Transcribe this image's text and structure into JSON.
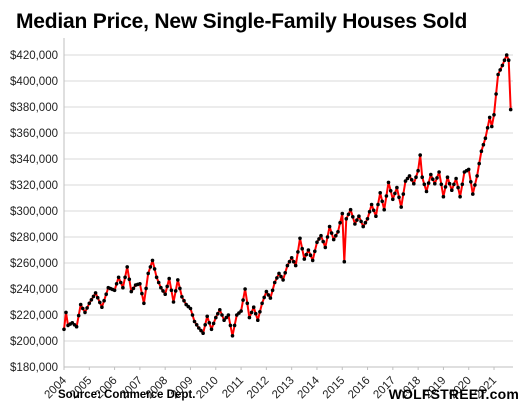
{
  "chart_data": {
    "type": "line",
    "title": "Median Price, New Single-Family Houses Sold",
    "xlabel": "",
    "ylabel": "",
    "x_ticks": [
      "2004",
      "2005",
      "2006",
      "2007",
      "2008",
      "2009",
      "2010",
      "2011",
      "2012",
      "2013",
      "2014",
      "2015",
      "2016",
      "2017",
      "2018",
      "2019",
      "2020",
      "2021"
    ],
    "y_ticks": [
      "$180,000",
      "$200,000",
      "$220,000",
      "$240,000",
      "$260,000",
      "$280,000",
      "$300,000",
      "$320,000",
      "$340,000",
      "$360,000",
      "$380,000",
      "$400,000",
      "$420,000"
    ],
    "ylim": [
      180000,
      430000
    ],
    "xlim": [
      2004.0,
      2021.75
    ],
    "grid": true,
    "line_color": "#ff0000",
    "marker_color": "#000000",
    "anchors": [
      [
        2004.0,
        209000
      ],
      [
        2004.08,
        222000
      ],
      [
        2004.16,
        212000
      ],
      [
        2004.33,
        214000
      ],
      [
        2004.5,
        211000
      ],
      [
        2004.66,
        228000
      ],
      [
        2004.83,
        222000
      ],
      [
        2005.0,
        229000
      ],
      [
        2005.25,
        237000
      ],
      [
        2005.5,
        226000
      ],
      [
        2005.75,
        241000
      ],
      [
        2006.0,
        239000
      ],
      [
        2006.16,
        249000
      ],
      [
        2006.33,
        241000
      ],
      [
        2006.5,
        257000
      ],
      [
        2006.66,
        238000
      ],
      [
        2006.83,
        243000
      ],
      [
        2007.0,
        244000
      ],
      [
        2007.16,
        229000
      ],
      [
        2007.33,
        252000
      ],
      [
        2007.5,
        262000
      ],
      [
        2007.66,
        249000
      ],
      [
        2007.83,
        241000
      ],
      [
        2008.0,
        236000
      ],
      [
        2008.16,
        248000
      ],
      [
        2008.33,
        230000
      ],
      [
        2008.5,
        247000
      ],
      [
        2008.66,
        234000
      ],
      [
        2008.83,
        228000
      ],
      [
        2009.0,
        225000
      ],
      [
        2009.16,
        215000
      ],
      [
        2009.33,
        210000
      ],
      [
        2009.5,
        206000
      ],
      [
        2009.66,
        219000
      ],
      [
        2009.83,
        209000
      ],
      [
        2010.0,
        218000
      ],
      [
        2010.16,
        224000
      ],
      [
        2010.33,
        216000
      ],
      [
        2010.5,
        220000
      ],
      [
        2010.66,
        204000
      ],
      [
        2010.83,
        220000
      ],
      [
        2011.0,
        223000
      ],
      [
        2011.16,
        240000
      ],
      [
        2011.33,
        218000
      ],
      [
        2011.5,
        226000
      ],
      [
        2011.66,
        216000
      ],
      [
        2011.83,
        229000
      ],
      [
        2012.0,
        238000
      ],
      [
        2012.16,
        233000
      ],
      [
        2012.33,
        245000
      ],
      [
        2012.5,
        252000
      ],
      [
        2012.66,
        247000
      ],
      [
        2012.83,
        258000
      ],
      [
        2013.0,
        264000
      ],
      [
        2013.16,
        258000
      ],
      [
        2013.33,
        279000
      ],
      [
        2013.5,
        263000
      ],
      [
        2013.66,
        270000
      ],
      [
        2013.83,
        262000
      ],
      [
        2014.0,
        276000
      ],
      [
        2014.16,
        281000
      ],
      [
        2014.33,
        272000
      ],
      [
        2014.5,
        288000
      ],
      [
        2014.66,
        278000
      ],
      [
        2014.83,
        284000
      ],
      [
        2015.0,
        298000
      ],
      [
        2015.08,
        261000
      ],
      [
        2015.16,
        294000
      ],
      [
        2015.33,
        301000
      ],
      [
        2015.5,
        290000
      ],
      [
        2015.66,
        296000
      ],
      [
        2015.83,
        288000
      ],
      [
        2016.0,
        294000
      ],
      [
        2016.16,
        305000
      ],
      [
        2016.33,
        296000
      ],
      [
        2016.5,
        314000
      ],
      [
        2016.66,
        301000
      ],
      [
        2016.83,
        322000
      ],
      [
        2017.0,
        309000
      ],
      [
        2017.16,
        318000
      ],
      [
        2017.33,
        303000
      ],
      [
        2017.5,
        323000
      ],
      [
        2017.66,
        327000
      ],
      [
        2017.83,
        321000
      ],
      [
        2018.0,
        331000
      ],
      [
        2018.08,
        343000
      ],
      [
        2018.16,
        326000
      ],
      [
        2018.33,
        315000
      ],
      [
        2018.5,
        328000
      ],
      [
        2018.66,
        321000
      ],
      [
        2018.83,
        330000
      ],
      [
        2019.0,
        311000
      ],
      [
        2019.16,
        326000
      ],
      [
        2019.33,
        316000
      ],
      [
        2019.5,
        325000
      ],
      [
        2019.66,
        311000
      ],
      [
        2019.83,
        330000
      ],
      [
        2020.0,
        332000
      ],
      [
        2020.16,
        313000
      ],
      [
        2020.33,
        327000
      ],
      [
        2020.5,
        346000
      ],
      [
        2020.66,
        356000
      ],
      [
        2020.83,
        372000
      ],
      [
        2020.91,
        365000
      ],
      [
        2021.0,
        374000
      ],
      [
        2021.08,
        390000
      ],
      [
        2021.16,
        405000
      ],
      [
        2021.33,
        412000
      ],
      [
        2021.5,
        420000
      ],
      [
        2021.58,
        416000
      ],
      [
        2021.66,
        378000
      ]
    ]
  },
  "footer": {
    "source": "Source: Commerce Dept.",
    "brand": "WOLFSTREET.com"
  }
}
